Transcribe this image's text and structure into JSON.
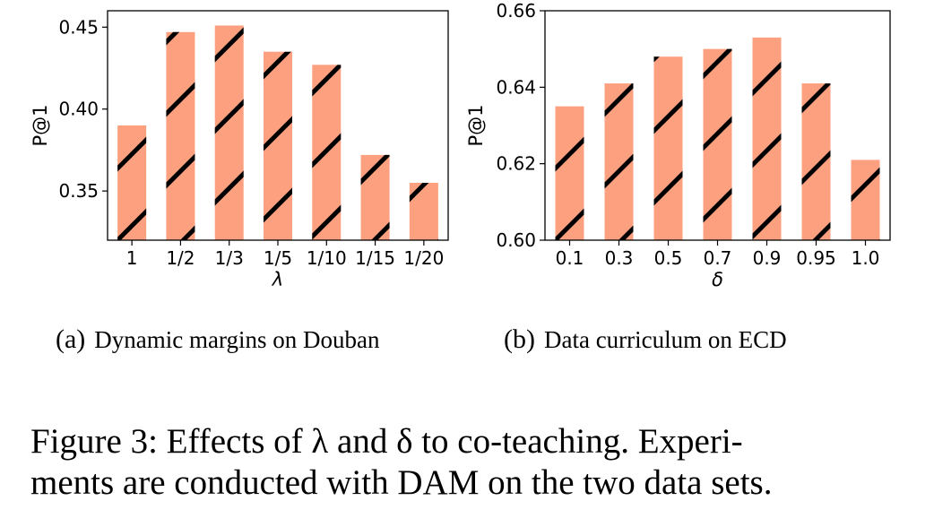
{
  "chart_data": [
    {
      "type": "bar",
      "categories": [
        "1",
        "1/2",
        "1/3",
        "1/5",
        "1/10",
        "1/15",
        "1/20"
      ],
      "values": [
        0.39,
        0.447,
        0.451,
        0.435,
        0.427,
        0.372,
        0.355
      ],
      "ylim": [
        0.32,
        0.46
      ],
      "yticks": [
        "0.35",
        "0.40",
        "0.45"
      ],
      "ytick_values": [
        0.35,
        0.4,
        0.45
      ],
      "xlabel": "λ",
      "ylabel": "P@1",
      "bar_color": "#fca07f",
      "hatch": "/",
      "caption_letter": "(a)",
      "caption_text": "Dynamic margins on Douban"
    },
    {
      "type": "bar",
      "categories": [
        "0.1",
        "0.3",
        "0.5",
        "0.7",
        "0.9",
        "0.95",
        "1.0"
      ],
      "values": [
        0.635,
        0.641,
        0.648,
        0.65,
        0.653,
        0.641,
        0.621
      ],
      "ylim": [
        0.6,
        0.66
      ],
      "yticks": [
        "0.60",
        "0.62",
        "0.64",
        "0.66"
      ],
      "ytick_values": [
        0.6,
        0.62,
        0.64,
        0.66
      ],
      "xlabel": "δ",
      "ylabel": "P@1",
      "bar_color": "#fca07f",
      "hatch": "/",
      "caption_letter": "(b)",
      "caption_text": "Data curriculum on ECD"
    }
  ],
  "figure_caption": {
    "line1": "Figure 3:  Effects of λ and δ to co-teaching.  Experi-",
    "line2": "ments are conducted with DAM on the two data sets."
  }
}
